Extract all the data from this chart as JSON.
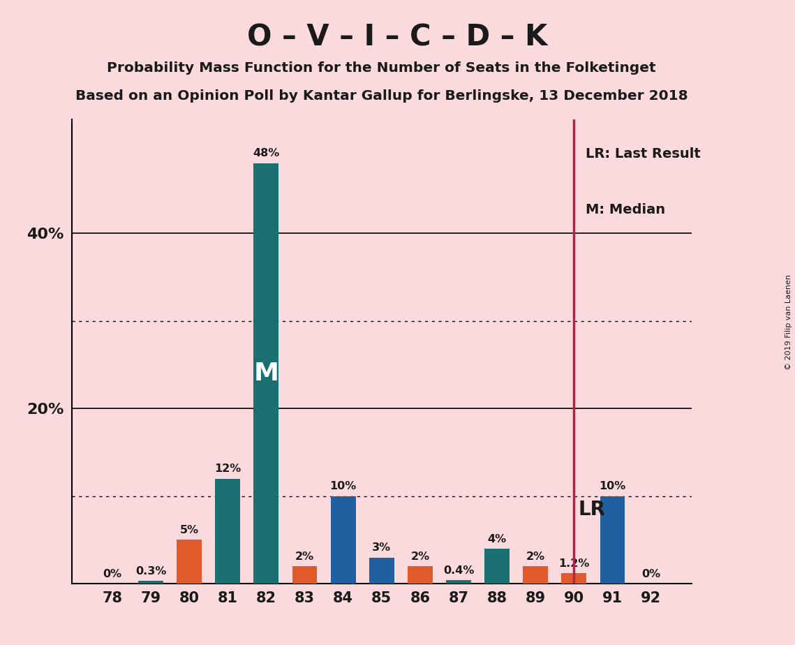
{
  "title1": "O – V – I – C – D – K",
  "title2": "Probability Mass Function for the Number of Seats in the Folketinget",
  "title3": "Based on an Opinion Poll by Kantar Gallup for Berlingske, 13 December 2018",
  "copyright": "© 2019 Filip van Laenen",
  "categories": [
    78,
    79,
    80,
    81,
    82,
    83,
    84,
    85,
    86,
    87,
    88,
    89,
    90,
    91,
    92
  ],
  "values": [
    0.0,
    0.3,
    5.0,
    12.0,
    48.0,
    2.0,
    10.0,
    3.0,
    2.0,
    0.4,
    4.0,
    2.0,
    1.2,
    10.0,
    0.0
  ],
  "labels": [
    "0%",
    "0.3%",
    "5%",
    "12%",
    "48%",
    "2%",
    "10%",
    "3%",
    "2%",
    "0.4%",
    "4%",
    "2%",
    "1.2%",
    "10%",
    "0%"
  ],
  "teal_color": "#1a7070",
  "orange_color": "#e05a2b",
  "blue_color": "#2060a0",
  "median_seat": 82,
  "lr_seat": 90,
  "lr_label": "LR",
  "legend_lr": "LR: Last Result",
  "legend_m": "M: Median",
  "median_label": "M",
  "ylim_max": 53,
  "ytick_solid": [
    20.0,
    40.0
  ],
  "ytick_dotted": [
    10.0,
    30.0
  ],
  "ytick_labels_pos": [
    20.0,
    40.0
  ],
  "ytick_labels_text": [
    "20%",
    "40%"
  ],
  "background_color": "#fadadd",
  "lr_line_color": "#b52244",
  "text_color": "#1a1a1a",
  "bar_width": 0.65
}
